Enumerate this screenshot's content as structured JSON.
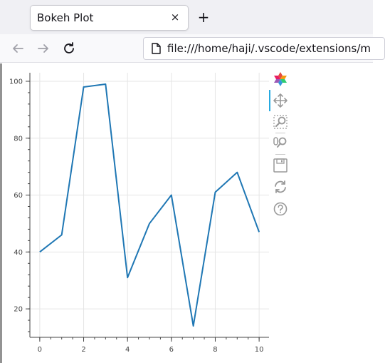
{
  "browser": {
    "tab_title": "Bokeh Plot",
    "tab_close_glyph": "×",
    "new_tab_glyph": "+",
    "url": "file:///home/haji/.vscode/extensions/m",
    "back_icon": "arrow-left-icon",
    "forward_icon": "arrow-right-icon",
    "reload_icon": "reload-icon",
    "page_icon": "page-icon"
  },
  "toolbar": {
    "tools": [
      "bokeh-logo-icon",
      "pan-icon",
      "box-zoom-icon",
      "wheel-zoom-icon",
      "save-icon",
      "reset-icon",
      "help-icon"
    ]
  },
  "chart_data": {
    "type": "line",
    "x": [
      0,
      1,
      2,
      3,
      4,
      5,
      6,
      7,
      8,
      9,
      10
    ],
    "y": [
      40,
      46,
      98,
      99,
      31,
      50,
      60,
      14,
      61,
      68,
      47
    ],
    "xlim": [
      -0.45,
      10.45
    ],
    "ylim": [
      10,
      103
    ],
    "xticks": [
      0,
      2,
      4,
      6,
      8,
      10
    ],
    "yticks": [
      20,
      40,
      60,
      80,
      100
    ],
    "grid": true,
    "line_color": "#1f77b4",
    "title": "",
    "xlabel": "",
    "ylabel": ""
  }
}
